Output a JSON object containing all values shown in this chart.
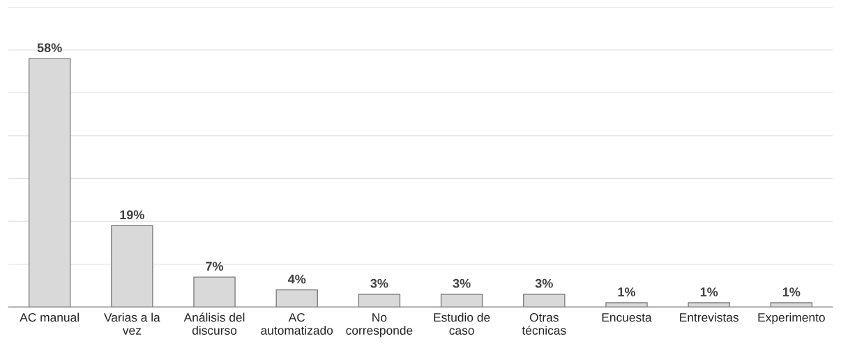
{
  "chart_data": {
    "type": "bar",
    "categories": [
      "AC manual",
      "Varias a la\nvez",
      "Análisis del\ndiscurso",
      "AC\nautomatizado",
      "No\ncorresponde",
      "Estudio de\ncaso",
      "Otras\ntécnicas",
      "Encuesta",
      "Entrevistas",
      "Experimento"
    ],
    "values": [
      58,
      19,
      7,
      4,
      3,
      3,
      3,
      1,
      1,
      1
    ],
    "value_labels": [
      "58%",
      "19%",
      "7%",
      "4%",
      "3%",
      "3%",
      "3%",
      "1%",
      "1%",
      "1%"
    ],
    "color": "#d9d9d9",
    "ylim": [
      0,
      70
    ],
    "yticks": [
      {
        "value": 0,
        "label": null
      },
      {
        "value": 10,
        "label": null
      },
      {
        "value": 20,
        "label": null
      },
      {
        "value": 30,
        "label": null
      },
      {
        "value": 40,
        "label": null
      },
      {
        "value": 50,
        "label": null
      },
      {
        "value": 60,
        "label": null
      },
      {
        "value": 70,
        "label": null
      }
    ],
    "grid": "y"
  }
}
